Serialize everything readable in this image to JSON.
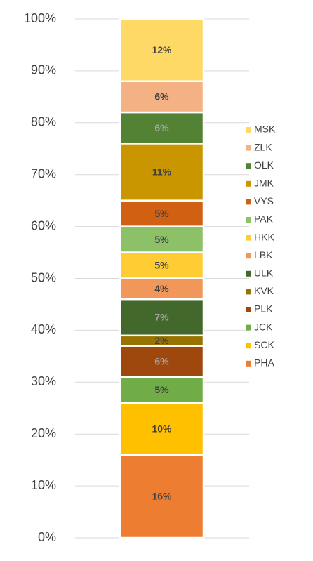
{
  "chart_data": {
    "type": "bar",
    "stacked": true,
    "categories": [
      null
    ],
    "ylim": [
      0,
      100
    ],
    "yticks": [
      {
        "value": 0,
        "label": "0%"
      },
      {
        "value": 10,
        "label": "10%"
      },
      {
        "value": 20,
        "label": "20%"
      },
      {
        "value": 30,
        "label": "30%"
      },
      {
        "value": 40,
        "label": "40%"
      },
      {
        "value": 50,
        "label": "50%"
      },
      {
        "value": 60,
        "label": "60%"
      },
      {
        "value": 70,
        "label": "70%"
      },
      {
        "value": 80,
        "label": "80%"
      },
      {
        "value": 90,
        "label": "90%"
      },
      {
        "value": 100,
        "label": "100%"
      }
    ],
    "grid": true,
    "legend": "right",
    "series": [
      {
        "name": "PHA",
        "color": "#ED7D31",
        "values": [
          16
        ],
        "value_labels": [
          "16%"
        ]
      },
      {
        "name": "SCK",
        "color": "#FFC000",
        "values": [
          10
        ],
        "value_labels": [
          "10%"
        ]
      },
      {
        "name": "JCK",
        "color": "#70AD47",
        "values": [
          5
        ],
        "value_labels": [
          "5%"
        ]
      },
      {
        "name": "PLK",
        "color": "#9E480E",
        "values": [
          6
        ],
        "value_labels": [
          "6%"
        ]
      },
      {
        "name": "KVK",
        "color": "#997300",
        "values": [
          2
        ],
        "value_labels": [
          "2%"
        ]
      },
      {
        "name": "ULK",
        "color": "#43682B",
        "values": [
          7
        ],
        "value_labels": [
          "7%"
        ]
      },
      {
        "name": "LBK",
        "color": "#F1975A",
        "values": [
          4
        ],
        "value_labels": [
          "4%"
        ]
      },
      {
        "name": "HKK",
        "color": "#FFCD33",
        "values": [
          5
        ],
        "value_labels": [
          "5%"
        ]
      },
      {
        "name": "PAK",
        "color": "#8CC168",
        "values": [
          5
        ],
        "value_labels": [
          "5%"
        ]
      },
      {
        "name": "VYS",
        "color": "#D26012",
        "values": [
          5
        ],
        "value_labels": [
          "5%"
        ]
      },
      {
        "name": "JMK",
        "color": "#C99600",
        "values": [
          11
        ],
        "value_labels": [
          "11%"
        ]
      },
      {
        "name": "OLK",
        "color": "#548235",
        "values": [
          6
        ],
        "value_labels": [
          "6%"
        ]
      },
      {
        "name": "ZLK",
        "color": "#F4B183",
        "values": [
          6
        ],
        "value_labels": [
          "6%"
        ]
      },
      {
        "name": "MSK",
        "color": "#FFD966",
        "values": [
          12
        ],
        "value_labels": [
          "12%"
        ]
      }
    ]
  }
}
